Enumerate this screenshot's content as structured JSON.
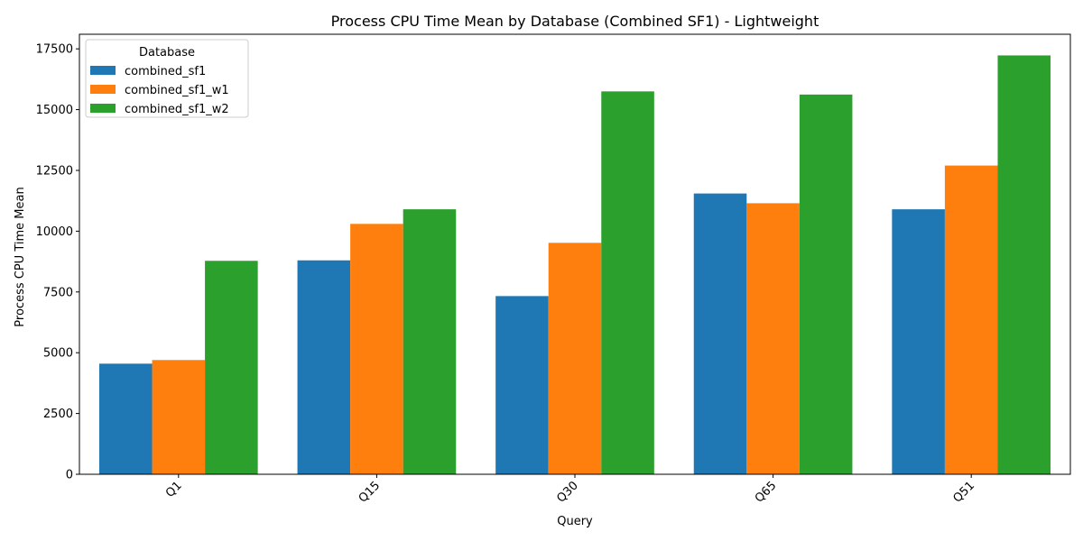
{
  "chart_data": {
    "type": "bar",
    "title": "Process CPU Time Mean by Database (Combined SF1) - Lightweight",
    "xlabel": "Query",
    "ylabel": "Process CPU Time Mean",
    "categories": [
      "Q1",
      "Q15",
      "Q30",
      "Q65",
      "Q51"
    ],
    "series": [
      {
        "name": "combined_sf1",
        "color": "#1f77b4",
        "values": [
          4550,
          8800,
          7330,
          11550,
          10900
        ]
      },
      {
        "name": "combined_sf1_w1",
        "color": "#ff7f0e",
        "values": [
          4700,
          10300,
          9520,
          11150,
          12700
        ]
      },
      {
        "name": "combined_sf1_w2",
        "color": "#2ca02c",
        "values": [
          8780,
          10900,
          15750,
          15620,
          17230
        ]
      }
    ],
    "ylim": [
      0,
      18100
    ],
    "yticks": [
      0,
      2500,
      5000,
      7500,
      10000,
      12500,
      15000,
      17500
    ],
    "ytick_labels": [
      "0",
      "2500",
      "5000",
      "7500",
      "10000",
      "12500",
      "15000",
      "17500"
    ],
    "grid": false,
    "legend": {
      "title": "Database",
      "placement": "top-left"
    }
  }
}
